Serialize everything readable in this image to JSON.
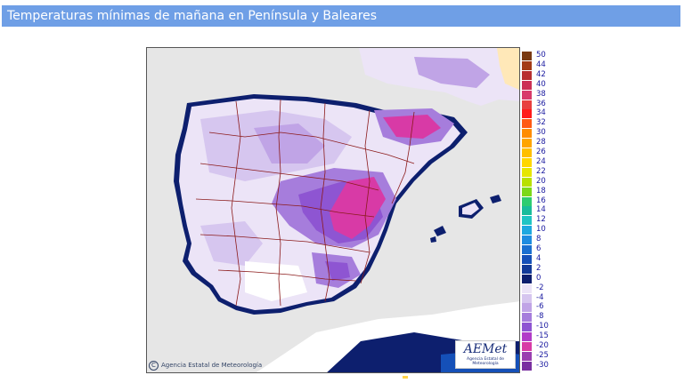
{
  "header": {
    "title": "Temperaturas mínimas de mañana en Península y Baleares"
  },
  "map": {
    "credit": "Agencia Estatal de Meteorología",
    "logo_text": "AEMet",
    "logo_subtext": "Agencia Estatal de Meteorología",
    "colors": {
      "sea": "#e6e6e6",
      "land_base": "#d6c6ef",
      "borders": "#8b1a1a"
    }
  },
  "legend": {
    "items": [
      {
        "label": "50",
        "color": "#7a3a12"
      },
      {
        "label": "44",
        "color": "#a33b16"
      },
      {
        "label": "42",
        "color": "#b82f2f"
      },
      {
        "label": "40",
        "color": "#cc3055"
      },
      {
        "label": "38",
        "color": "#d83a6a"
      },
      {
        "label": "36",
        "color": "#e83f3f"
      },
      {
        "label": "34",
        "color": "#ff1a1a"
      },
      {
        "label": "32",
        "color": "#ff5a14"
      },
      {
        "label": "30",
        "color": "#ff8c00"
      },
      {
        "label": "28",
        "color": "#ffa500"
      },
      {
        "label": "26",
        "color": "#ffbf00"
      },
      {
        "label": "24",
        "color": "#ffd700"
      },
      {
        "label": "22",
        "color": "#e6e600"
      },
      {
        "label": "20",
        "color": "#b8e000"
      },
      {
        "label": "18",
        "color": "#7cd81a"
      },
      {
        "label": "16",
        "color": "#2ecc71"
      },
      {
        "label": "14",
        "color": "#1abc9c"
      },
      {
        "label": "12",
        "color": "#20c4c4"
      },
      {
        "label": "10",
        "color": "#1ea8e0"
      },
      {
        "label": "8",
        "color": "#1e8ce0"
      },
      {
        "label": "6",
        "color": "#1a6fd0"
      },
      {
        "label": "4",
        "color": "#1550b8"
      },
      {
        "label": "2",
        "color": "#123a98"
      },
      {
        "label": "0",
        "color": "#0d1f6e"
      },
      {
        "label": "-2",
        "color": "#ece4f7"
      },
      {
        "label": "-4",
        "color": "#d6c6ef"
      },
      {
        "label": "-6",
        "color": "#c0a4e6"
      },
      {
        "label": "-8",
        "color": "#a67ddc"
      },
      {
        "label": "-10",
        "color": "#8e55d2"
      },
      {
        "label": "-15",
        "color": "#b13cc8"
      },
      {
        "label": "-20",
        "color": "#d83aa6"
      },
      {
        "label": "-25",
        "color": "#9a3fb0"
      },
      {
        "label": "-30",
        "color": "#7a30a0"
      }
    ]
  }
}
